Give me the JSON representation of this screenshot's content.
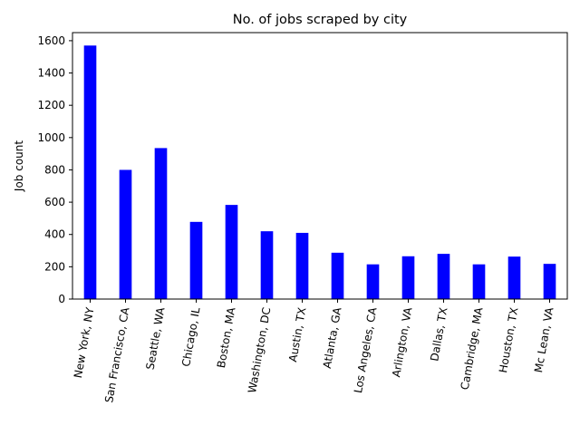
{
  "chart_data": {
    "type": "bar",
    "title": "No. of jobs scraped by city",
    "xlabel": "",
    "ylabel": "Job count",
    "categories": [
      "New York, NY",
      "San Francisco, CA",
      "Seattle, WA",
      "Chicago, IL",
      "Boston, MA",
      "Washington, DC",
      "Austin, TX",
      "Atlanta, GA",
      "Los Angeles, CA",
      "Arlington, VA",
      "Dallas, TX",
      "Cambridge, MA",
      "Houston, TX",
      "Mc Lean, VA"
    ],
    "values": [
      1570,
      800,
      935,
      478,
      583,
      420,
      410,
      287,
      215,
      265,
      280,
      215,
      263,
      218
    ],
    "ylim": [
      0,
      1650
    ],
    "yticks": [
      0,
      200,
      400,
      600,
      800,
      1000,
      1200,
      1400,
      1600
    ],
    "bar_color": "#0000ff",
    "grid": false,
    "legend": "none"
  }
}
